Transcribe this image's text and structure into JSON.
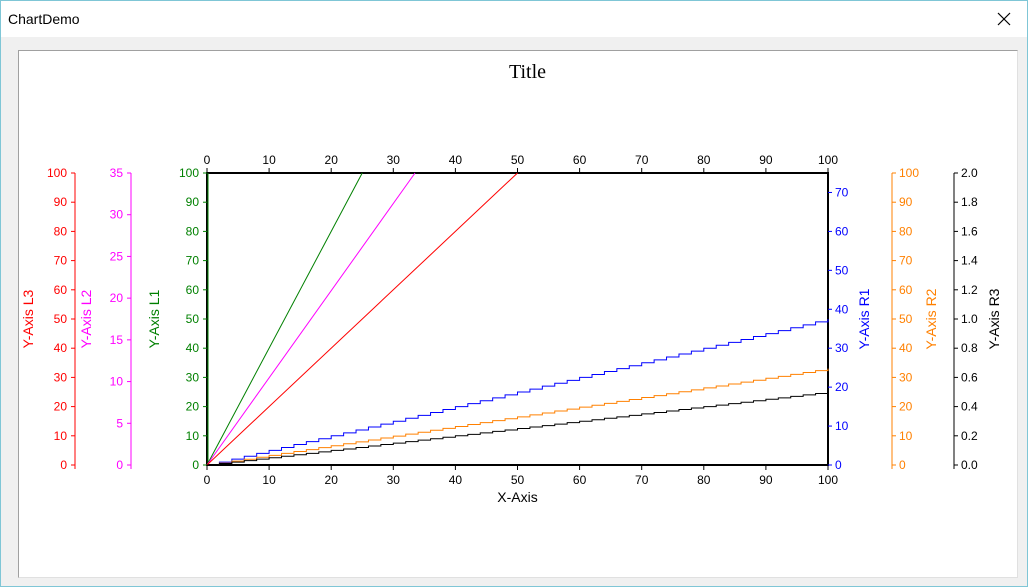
{
  "window": {
    "title": "ChartDemo"
  },
  "chart_data": {
    "type": "line",
    "title": "Title",
    "xlabel": "X-Axis",
    "xlim": [
      0,
      100
    ],
    "xticks": [
      0,
      10,
      20,
      30,
      40,
      50,
      60,
      70,
      80,
      90,
      100
    ],
    "grid": false,
    "legend": "none",
    "axes": [
      {
        "id": "L3",
        "label": "Y-Axis L3",
        "color": "#ff0000",
        "side": "left",
        "min": 0,
        "max": 100,
        "ticks": [
          0,
          10,
          20,
          30,
          40,
          50,
          60,
          70,
          80,
          90,
          100
        ],
        "decimals": 0
      },
      {
        "id": "L2",
        "label": "Y-Axis L2",
        "color": "#ff00ff",
        "side": "left",
        "min": 0,
        "max": 35,
        "ticks": [
          0,
          5,
          10,
          15,
          20,
          25,
          30,
          35
        ],
        "decimals": 0
      },
      {
        "id": "L1",
        "label": "Y-Axis L1",
        "color": "#008000",
        "side": "left",
        "min": 0,
        "max": 100,
        "ticks": [
          0,
          10,
          20,
          30,
          40,
          50,
          60,
          70,
          80,
          90,
          100
        ],
        "decimals": 0
      },
      {
        "id": "R1",
        "label": "Y-Axis R1",
        "color": "#0000ff",
        "side": "right",
        "min": 0,
        "max": 75,
        "ticks": [
          0,
          10,
          20,
          30,
          40,
          50,
          60,
          70
        ],
        "decimals": 0
      },
      {
        "id": "R2",
        "label": "Y-Axis R2",
        "color": "#ff8000",
        "side": "right",
        "min": 0,
        "max": 100,
        "ticks": [
          0,
          10,
          20,
          30,
          40,
          50,
          60,
          70,
          80,
          90,
          100
        ],
        "decimals": 0
      },
      {
        "id": "R3",
        "label": "Y-Axis R3",
        "color": "#000000",
        "side": "right",
        "min": 0,
        "max": 2.0,
        "ticks": [
          0,
          0.2,
          0.4,
          0.6,
          0.8,
          1.0,
          1.2,
          1.4,
          1.6,
          1.8,
          2.0
        ],
        "decimals": 1
      }
    ],
    "series": [
      {
        "axis": "L1",
        "color": "#008000",
        "x": [
          0,
          25
        ],
        "y": [
          0,
          100
        ],
        "step": false
      },
      {
        "axis": "L2",
        "color": "#ff00ff",
        "x": [
          0,
          33.5
        ],
        "y": [
          0,
          35
        ],
        "step": false
      },
      {
        "axis": "L3",
        "color": "#ff0000",
        "x": [
          0,
          50
        ],
        "y": [
          0,
          100
        ],
        "step": false
      },
      {
        "axis": "R1",
        "color": "#0000ff",
        "x": [
          0,
          100
        ],
        "y": [
          0,
          37.5
        ],
        "step": true
      },
      {
        "axis": "R2",
        "color": "#ff8000",
        "x": [
          0,
          100
        ],
        "y": [
          0,
          33
        ],
        "step": true
      },
      {
        "axis": "R3",
        "color": "#000000",
        "x": [
          0,
          100
        ],
        "y": [
          0,
          0.5
        ],
        "step": true
      }
    ]
  }
}
